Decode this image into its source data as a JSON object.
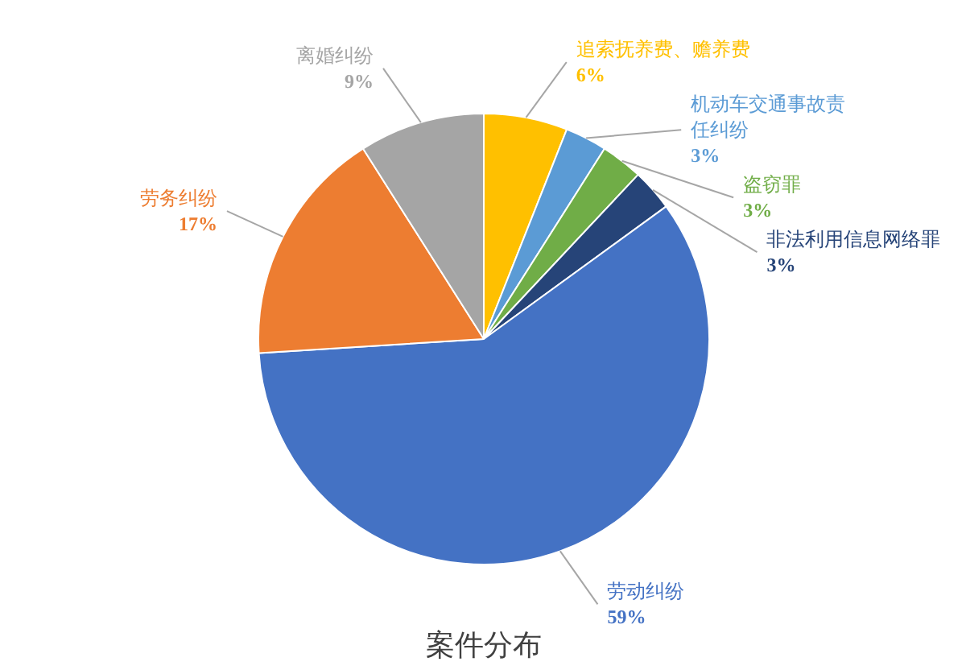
{
  "chart_data": {
    "type": "pie",
    "title": "案件分布",
    "categories": [
      "追索抚养费、赡养费",
      "机动车交通事故责任纠纷",
      "盗窃罪",
      "非法利用信息网络罪",
      "劳动纠纷",
      "劳务纠纷",
      "离婚纠纷"
    ],
    "values": [
      6,
      3,
      3,
      3,
      59,
      17,
      9
    ],
    "value_labels": [
      "6%",
      "3%",
      "3%",
      "3%",
      "59%",
      "17%",
      "9%"
    ],
    "colors": [
      "#ffc000",
      "#5b9bd5",
      "#70ad47",
      "#264478",
      "#4472c4",
      "#ed7d31",
      "#a5a5a5"
    ]
  }
}
